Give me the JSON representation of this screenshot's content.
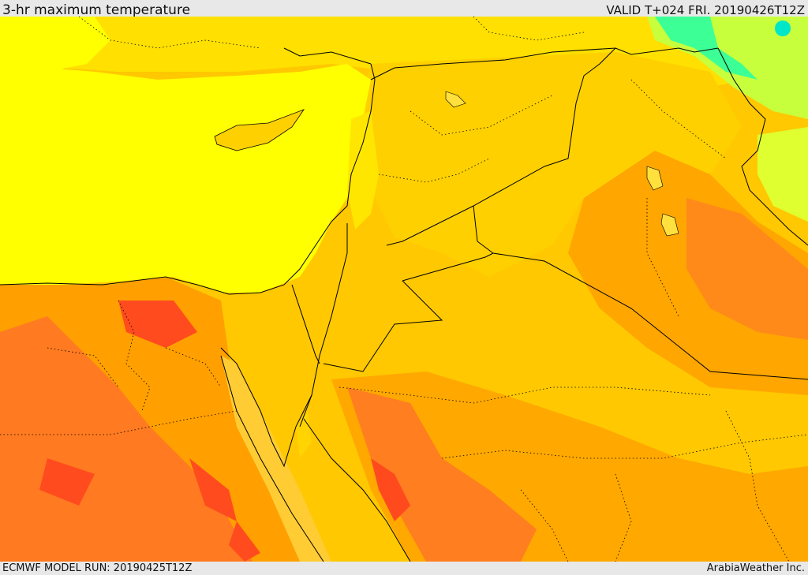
{
  "header": {
    "title": "3-hr maximum temperature",
    "valid": "VALID T+024 FRI. 20190426T12Z"
  },
  "footer": {
    "model_run": "ECMWF MODEL RUN: 20190425T12Z",
    "credit": "ArabiaWeather Inc."
  },
  "map": {
    "field": "3-hr maximum temperature",
    "palette": {
      "sea": "#ffff00",
      "warm": "#ffd700",
      "hot": "#ffb300",
      "very_hot": "#ff9900",
      "hottest": "#ff6a1a",
      "extreme": "#ff3c1e",
      "cool": "#c8ff3c",
      "cold": "#3cff96",
      "coldest": "#00e6a0"
    }
  }
}
